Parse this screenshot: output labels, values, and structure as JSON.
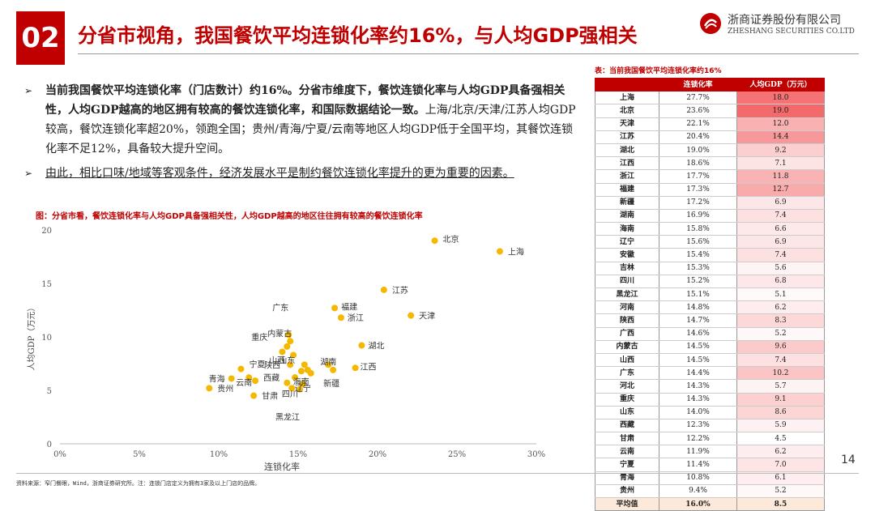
{
  "header": {
    "section_number": "02",
    "title": "分省市视角，我国餐饮平均连锁化率约16%，与人均GDP强相关",
    "logo_cn": "浙商证券股份有限公司",
    "logo_en": "ZHESHANG SECURITIES CO.LTD"
  },
  "bullets": [
    {
      "bold_text": "当前我国餐饮平均连锁化率（门店数计）约16%。分省市维度下，餐饮连锁化率与人均GDP具备强相关性，人均GDP越高的地区拥有较高的餐饮连锁化率，和国际数据结论一致。",
      "normal_text": "上海/北京/天津/江苏人均GDP较高，餐饮连锁化率超20%，领跑全国；贵州/青海/宁夏/云南等地区人均GDP低于全国平均，其餐饮连锁化率不足12%，具备较大提升空间。"
    },
    {
      "text": "由此，相比口味/地域等客观条件，经济发展水平是制约餐饮连锁化率提升的更为重要的因素。"
    }
  ],
  "chart_caption": "图：分省市看，餐饮连锁化率与人均GDP具备强相关性，人均GDP越高的地区往往拥有较高的餐饮连锁化率",
  "chart_data": {
    "type": "scatter",
    "xlabel": "连锁化率",
    "ylabel": "人均GDP（万元）",
    "xlim": [
      0,
      30
    ],
    "ylim": [
      0,
      20
    ],
    "x_ticks": [
      "0%",
      "5%",
      "10%",
      "15%",
      "20%",
      "25%",
      "30%"
    ],
    "y_ticks": [
      "0",
      "5",
      "10",
      "15",
      "20"
    ],
    "point_color": "#f5b800",
    "points": [
      {
        "label": "上海",
        "x": 27.7,
        "y": 18.0
      },
      {
        "label": "北京",
        "x": 23.6,
        "y": 19.0
      },
      {
        "label": "天津",
        "x": 22.1,
        "y": 12.0
      },
      {
        "label": "江苏",
        "x": 20.4,
        "y": 14.4
      },
      {
        "label": "湖北",
        "x": 19.0,
        "y": 9.2
      },
      {
        "label": "江西",
        "x": 18.6,
        "y": 7.1
      },
      {
        "label": "浙江",
        "x": 17.7,
        "y": 11.8
      },
      {
        "label": "福建",
        "x": 17.3,
        "y": 12.7
      },
      {
        "label": "新疆",
        "x": 17.2,
        "y": 6.9
      },
      {
        "label": "湖南",
        "x": 16.9,
        "y": 7.4
      },
      {
        "label": "海南",
        "x": 15.8,
        "y": 6.6
      },
      {
        "label": "辽宁",
        "x": 15.6,
        "y": 6.9
      },
      {
        "label": "安徽",
        "x": 15.4,
        "y": 7.4
      },
      {
        "label": "吉林",
        "x": 15.3,
        "y": 5.6
      },
      {
        "label": "四川",
        "x": 15.2,
        "y": 6.8
      },
      {
        "label": "黑龙江",
        "x": 15.1,
        "y": 5.1
      },
      {
        "label": "河南",
        "x": 14.8,
        "y": 6.2
      },
      {
        "label": "陕西",
        "x": 14.7,
        "y": 8.3
      },
      {
        "label": "广西",
        "x": 14.6,
        "y": 5.2
      },
      {
        "label": "内蒙古",
        "x": 14.5,
        "y": 9.6
      },
      {
        "label": "山西",
        "x": 14.5,
        "y": 7.4
      },
      {
        "label": "广东",
        "x": 14.4,
        "y": 10.2
      },
      {
        "label": "河北",
        "x": 14.3,
        "y": 5.7
      },
      {
        "label": "重庆",
        "x": 14.3,
        "y": 9.1
      },
      {
        "label": "山东",
        "x": 14.0,
        "y": 8.6
      },
      {
        "label": "西藏",
        "x": 12.3,
        "y": 5.9
      },
      {
        "label": "甘肃",
        "x": 12.2,
        "y": 4.5
      },
      {
        "label": "云南",
        "x": 11.9,
        "y": 6.2
      },
      {
        "label": "宁夏",
        "x": 11.4,
        "y": 7.0
      },
      {
        "label": "青海",
        "x": 10.8,
        "y": 6.1
      },
      {
        "label": "贵州",
        "x": 9.4,
        "y": 5.2
      }
    ],
    "visible_labels": [
      "上海",
      "北京",
      "天津",
      "江苏",
      "湖北",
      "江西",
      "浙江",
      "福建",
      "新疆",
      "湖南",
      "海南",
      "辽宁",
      "四川",
      "黑龙江",
      "内蒙古",
      "山西",
      "广东",
      "重庆",
      "山东",
      "陕西",
      "西藏",
      "甘肃",
      "云南",
      "宁夏",
      "青海",
      "贵州"
    ]
  },
  "table": {
    "caption": "表：当前我国餐饮平均连锁化率约16%",
    "headers": [
      "",
      "连锁化率",
      "人均GDP（万元）"
    ],
    "rows": [
      {
        "province": "上海",
        "rate": "27.7%",
        "gdp": "18.0"
      },
      {
        "province": "北京",
        "rate": "23.6%",
        "gdp": "19.0"
      },
      {
        "province": "天津",
        "rate": "22.1%",
        "gdp": "12.0"
      },
      {
        "province": "江苏",
        "rate": "20.4%",
        "gdp": "14.4"
      },
      {
        "province": "湖北",
        "rate": "19.0%",
        "gdp": "9.2"
      },
      {
        "province": "江西",
        "rate": "18.6%",
        "gdp": "7.1"
      },
      {
        "province": "浙江",
        "rate": "17.7%",
        "gdp": "11.8"
      },
      {
        "province": "福建",
        "rate": "17.3%",
        "gdp": "12.7"
      },
      {
        "province": "新疆",
        "rate": "17.2%",
        "gdp": "6.9"
      },
      {
        "province": "湖南",
        "rate": "16.9%",
        "gdp": "7.4"
      },
      {
        "province": "海南",
        "rate": "15.8%",
        "gdp": "6.6"
      },
      {
        "province": "辽宁",
        "rate": "15.6%",
        "gdp": "6.9"
      },
      {
        "province": "安徽",
        "rate": "15.4%",
        "gdp": "7.4"
      },
      {
        "province": "吉林",
        "rate": "15.3%",
        "gdp": "5.6"
      },
      {
        "province": "四川",
        "rate": "15.2%",
        "gdp": "6.8"
      },
      {
        "province": "黑龙江",
        "rate": "15.1%",
        "gdp": "5.1"
      },
      {
        "province": "河南",
        "rate": "14.8%",
        "gdp": "6.2"
      },
      {
        "province": "陕西",
        "rate": "14.7%",
        "gdp": "8.3"
      },
      {
        "province": "广西",
        "rate": "14.6%",
        "gdp": "5.2"
      },
      {
        "province": "内蒙古",
        "rate": "14.5%",
        "gdp": "9.6"
      },
      {
        "province": "山西",
        "rate": "14.5%",
        "gdp": "7.4"
      },
      {
        "province": "广东",
        "rate": "14.4%",
        "gdp": "10.2"
      },
      {
        "province": "河北",
        "rate": "14.3%",
        "gdp": "5.7"
      },
      {
        "province": "重庆",
        "rate": "14.3%",
        "gdp": "9.1"
      },
      {
        "province": "山东",
        "rate": "14.0%",
        "gdp": "8.6"
      },
      {
        "province": "西藏",
        "rate": "12.3%",
        "gdp": "5.9"
      },
      {
        "province": "甘肃",
        "rate": "12.2%",
        "gdp": "4.5"
      },
      {
        "province": "云南",
        "rate": "11.9%",
        "gdp": "6.2"
      },
      {
        "province": "宁夏",
        "rate": "11.4%",
        "gdp": "7.0"
      },
      {
        "province": "青海",
        "rate": "10.8%",
        "gdp": "6.1"
      },
      {
        "province": "贵州",
        "rate": "9.4%",
        "gdp": "5.2"
      }
    ],
    "average": {
      "province": "平均值",
      "rate": "16.0%",
      "gdp": "8.5"
    },
    "colors": {
      "header_bg": "#c00000",
      "heat_high": "#f4696b",
      "heat_low": "#ffffff",
      "avg_bg": "#fde9d9"
    }
  },
  "footer": {
    "source": "资料来源：窄门餐眼，Wind，浙商证券研究所。注：连锁门店定义为拥有3家及以上门店的品牌。",
    "page_number": "14"
  },
  "colors": {
    "accent": "#c00000"
  }
}
